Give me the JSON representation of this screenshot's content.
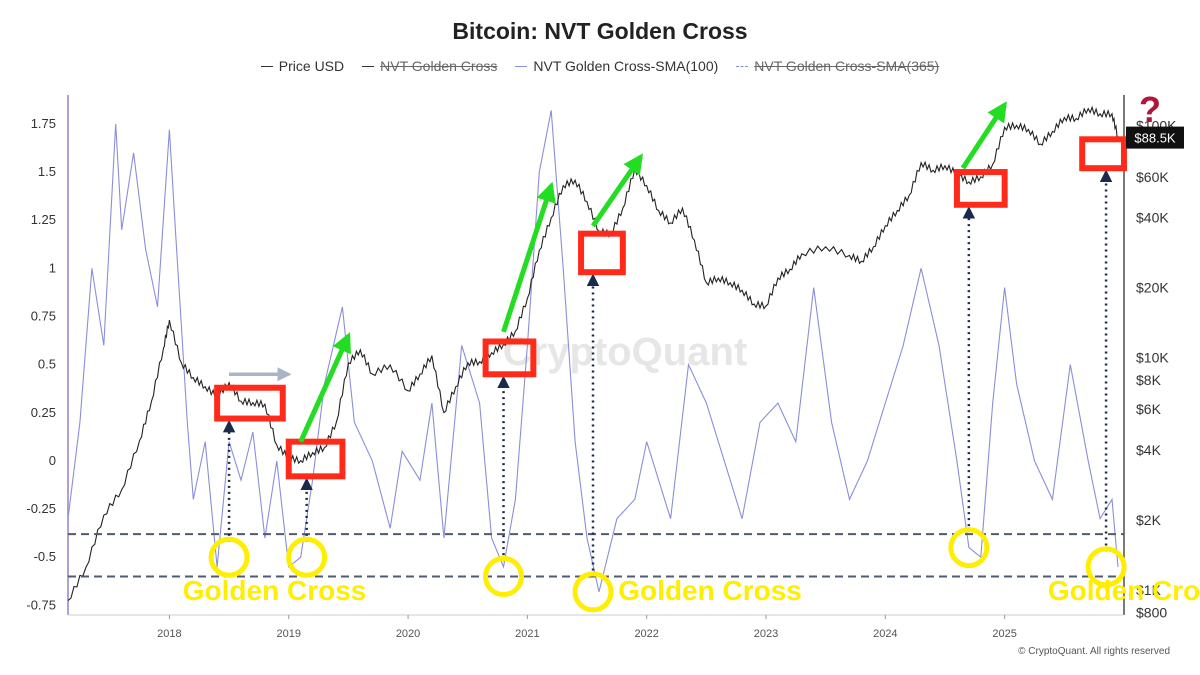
{
  "chart_data": {
    "type": "line",
    "title": "Bitcoin: NVT Golden Cross",
    "legend": [
      {
        "name": "Price USD",
        "enabled": true,
        "color": "#222222",
        "dash": "solid"
      },
      {
        "name": "NVT Golden Cross",
        "enabled": false,
        "color": "#222222",
        "dash": "solid"
      },
      {
        "name": "NVT Golden Cross-SMA(100)",
        "enabled": true,
        "color": "#8a8fd8",
        "dash": "solid"
      },
      {
        "name": "NVT Golden Cross-SMA(365)",
        "enabled": false,
        "color": "#8a8fd8",
        "dash": "dashed"
      }
    ],
    "legend_position": "top-center",
    "x_ticks": [
      "2018",
      "2019",
      "2020",
      "2021",
      "2022",
      "2023",
      "2024",
      "2025"
    ],
    "x_range": [
      2017.15,
      2025.95
    ],
    "left_axis": {
      "ticks": [
        "1.75",
        "1.5",
        "1.25",
        "1",
        "0.75",
        "0.5",
        "0.25",
        "0",
        "-0.25",
        "-0.5",
        "-0.75"
      ],
      "range": [
        -0.8,
        1.9
      ]
    },
    "right_axis": {
      "ticks": [
        "$100K",
        "$60K",
        "$40K",
        "$20K",
        "$10K",
        "$8K",
        "$6K",
        "$4K",
        "$2K",
        "$1K",
        "$800"
      ],
      "scale": "log",
      "range": [
        780,
        135000
      ]
    },
    "current_price_label": "$88.5K",
    "reference_lines": [
      -0.38,
      -0.6
    ],
    "series": [
      {
        "name": "Price USD",
        "axis": "right",
        "x": [
          2017.15,
          2017.3,
          2017.45,
          2017.6,
          2017.75,
          2017.85,
          2017.95,
          2018.0,
          2018.1,
          2018.2,
          2018.3,
          2018.4,
          2018.5,
          2018.6,
          2018.7,
          2018.8,
          2018.9,
          2019.0,
          2019.1,
          2019.2,
          2019.3,
          2019.4,
          2019.5,
          2019.6,
          2019.7,
          2019.85,
          2020.0,
          2020.1,
          2020.2,
          2020.3,
          2020.4,
          2020.5,
          2020.6,
          2020.7,
          2020.8,
          2020.9,
          2021.0,
          2021.1,
          2021.2,
          2021.3,
          2021.4,
          2021.5,
          2021.6,
          2021.7,
          2021.8,
          2021.9,
          2022.0,
          2022.1,
          2022.2,
          2022.3,
          2022.4,
          2022.5,
          2022.6,
          2022.7,
          2022.8,
          2022.9,
          2023.0,
          2023.1,
          2023.2,
          2023.3,
          2023.5,
          2023.7,
          2023.8,
          2023.9,
          2024.0,
          2024.1,
          2024.2,
          2024.3,
          2024.4,
          2024.5,
          2024.6,
          2024.7,
          2024.8,
          2024.9,
          2025.0,
          2025.1,
          2025.2,
          2025.3,
          2025.4,
          2025.5,
          2025.6,
          2025.7,
          2025.8,
          2025.9,
          2025.95
        ],
        "values": [
          900,
          1250,
          2100,
          2700,
          4400,
          6500,
          11000,
          14500,
          9500,
          8200,
          7500,
          6800,
          7800,
          6500,
          6400,
          6300,
          4200,
          3700,
          3600,
          3900,
          4100,
          5300,
          9500,
          10800,
          8500,
          9300,
          7200,
          8500,
          10200,
          5800,
          7500,
          9500,
          9600,
          10500,
          11400,
          13000,
          18000,
          29000,
          40000,
          55000,
          58000,
          47000,
          35000,
          34000,
          44000,
          65000,
          55000,
          43000,
          38000,
          44000,
          32000,
          21000,
          22000,
          21000,
          19500,
          17000,
          16700,
          22000,
          24000,
          28000,
          30000,
          27500,
          26000,
          30000,
          37000,
          43000,
          50000,
          69000,
          64000,
          67000,
          62000,
          57000,
          60000,
          68000,
          98000,
          100000,
          96000,
          83000,
          94000,
          108000,
          107000,
          118000,
          112000,
          112000,
          89000
        ]
      },
      {
        "name": "NVT Golden Cross-SMA(100)",
        "axis": "left",
        "x": [
          2017.15,
          2017.25,
          2017.35,
          2017.45,
          2017.55,
          2017.6,
          2017.7,
          2017.8,
          2017.9,
          2018.0,
          2018.05,
          2018.1,
          2018.15,
          2018.2,
          2018.3,
          2018.4,
          2018.5,
          2018.6,
          2018.7,
          2018.8,
          2018.9,
          2019.0,
          2019.1,
          2019.2,
          2019.3,
          2019.45,
          2019.55,
          2019.7,
          2019.85,
          2019.95,
          2020.1,
          2020.2,
          2020.3,
          2020.45,
          2020.6,
          2020.7,
          2020.8,
          2020.9,
          2021.0,
          2021.1,
          2021.2,
          2021.3,
          2021.4,
          2021.5,
          2021.6,
          2021.75,
          2021.9,
          2022.0,
          2022.2,
          2022.35,
          2022.5,
          2022.65,
          2022.8,
          2022.95,
          2023.1,
          2023.25,
          2023.4,
          2023.55,
          2023.7,
          2023.85,
          2024.0,
          2024.15,
          2024.3,
          2024.45,
          2024.6,
          2024.7,
          2024.8,
          2024.9,
          2025.0,
          2025.1,
          2025.25,
          2025.4,
          2025.55,
          2025.7,
          2025.8,
          2025.9,
          2025.95
        ],
        "values": [
          -0.3,
          0.2,
          1.0,
          0.6,
          1.75,
          1.2,
          1.6,
          1.1,
          0.8,
          1.72,
          1.2,
          0.7,
          0.2,
          -0.2,
          0.1,
          -0.55,
          0.1,
          -0.1,
          0.15,
          -0.4,
          0.0,
          -0.55,
          -0.5,
          -0.1,
          0.4,
          0.8,
          0.2,
          0.0,
          -0.35,
          0.05,
          -0.1,
          0.3,
          -0.4,
          0.6,
          0.3,
          -0.4,
          -0.55,
          -0.2,
          0.6,
          1.5,
          1.82,
          1.0,
          0.1,
          -0.4,
          -0.68,
          -0.3,
          -0.2,
          0.1,
          -0.3,
          0.5,
          0.3,
          0.0,
          -0.3,
          0.2,
          0.3,
          0.1,
          0.9,
          0.2,
          -0.2,
          0.0,
          0.3,
          0.6,
          1.0,
          0.6,
          0.0,
          -0.45,
          -0.5,
          0.3,
          0.9,
          0.4,
          0.0,
          -0.2,
          0.5,
          0.0,
          -0.3,
          -0.2,
          -0.55
        ]
      }
    ],
    "annotations": {
      "golden_cross_label": "Golden Cross",
      "question_mark": "?",
      "boxes": [
        {
          "x0": 2018.4,
          "x1": 2018.95,
          "y0": 0.22,
          "y1": 0.38
        },
        {
          "x0": 2019.0,
          "x1": 2019.45,
          "y0": -0.08,
          "y1": 0.1
        },
        {
          "x0": 2020.65,
          "x1": 2021.05,
          "y0": 0.45,
          "y1": 0.62
        },
        {
          "x0": 2021.45,
          "x1": 2021.8,
          "y0": 0.98,
          "y1": 1.18
        },
        {
          "x0": 2024.6,
          "x1": 2025.0,
          "y0": 1.33,
          "y1": 1.5
        },
        {
          "x0": 2025.65,
          "x1": 2026.0,
          "y0": 1.52,
          "y1": 1.67
        }
      ],
      "circles": [
        {
          "x": 2018.5,
          "y": -0.5
        },
        {
          "x": 2019.15,
          "y": -0.5
        },
        {
          "x": 2020.8,
          "y": -0.6
        },
        {
          "x": 2021.55,
          "y": -0.68
        },
        {
          "x": 2024.7,
          "y": -0.45
        },
        {
          "x": 2025.85,
          "y": -0.55
        }
      ],
      "dotted_arrows": [
        {
          "x": 2018.5,
          "from_y": -0.42,
          "to_y": 0.2
        },
        {
          "x": 2019.15,
          "from_y": -0.42,
          "to_y": -0.1
        },
        {
          "x": 2020.8,
          "from_y": -0.52,
          "to_y": 0.43
        },
        {
          "x": 2021.55,
          "from_y": -0.6,
          "to_y": 0.96
        },
        {
          "x": 2024.7,
          "from_y": -0.37,
          "to_y": 1.31
        },
        {
          "x": 2025.85,
          "from_y": -0.47,
          "to_y": 1.5
        }
      ],
      "green_arrows": [
        {
          "x0": 2019.1,
          "y0": 0.1,
          "x1": 2019.5,
          "y1": 0.65
        },
        {
          "x0": 2020.8,
          "y0": 0.67,
          "x1": 2021.2,
          "y1": 1.43
        },
        {
          "x0": 2021.55,
          "y0": 1.22,
          "x1": 2021.95,
          "y1": 1.58
        },
        {
          "x0": 2024.65,
          "y0": 1.52,
          "x1": 2025.0,
          "y1": 1.85
        }
      ],
      "gray_arrow": {
        "x0": 2018.5,
        "y0": 0.45,
        "x1": 2019.0,
        "y1": 0.45
      },
      "golden_cross_labels_x": [
        2018.95,
        2022.6,
        2026.2
      ]
    },
    "watermark": "CryptoQuant",
    "copyright": "© CryptoQuant. All rights reserved"
  }
}
